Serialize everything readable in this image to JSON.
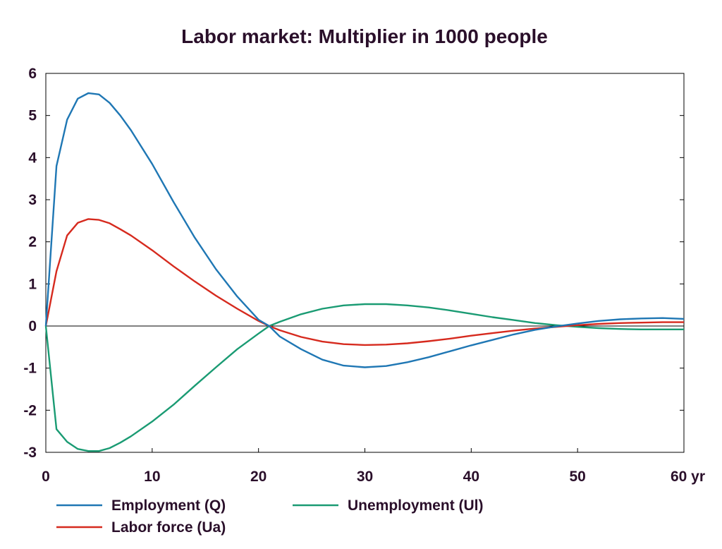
{
  "chart_data": {
    "type": "line",
    "title": "Labor market: Multiplier in 1000 people",
    "xlabel": "",
    "ylabel": "",
    "xlim": [
      0,
      60
    ],
    "ylim": [
      -3,
      6
    ],
    "x_ticks": [
      0,
      10,
      20,
      30,
      40,
      50,
      60
    ],
    "x_tick_labels": [
      "0",
      "10",
      "20",
      "30",
      "40",
      "50",
      "60 yr"
    ],
    "y_ticks": [
      -3,
      -2,
      -1,
      0,
      1,
      2,
      3,
      4,
      5,
      6
    ],
    "y_tick_labels": [
      "-3",
      "-2",
      "-1",
      "0",
      "1",
      "2",
      "3",
      "4",
      "5",
      "6"
    ],
    "grid": false,
    "legend_position": "bottom",
    "series": [
      {
        "name": "Employment (Q)",
        "color": "#1f77b4",
        "x": [
          0,
          1,
          2,
          3,
          4,
          5,
          6,
          7,
          8,
          10,
          12,
          14,
          16,
          18,
          20,
          21,
          22,
          24,
          26,
          28,
          30,
          32,
          34,
          36,
          38,
          40,
          42,
          44,
          46,
          48,
          50,
          52,
          54,
          56,
          58,
          60
        ],
        "y": [
          0,
          3.8,
          4.9,
          5.4,
          5.53,
          5.5,
          5.3,
          5.0,
          4.65,
          3.85,
          2.95,
          2.1,
          1.35,
          0.7,
          0.15,
          0,
          -0.25,
          -0.55,
          -0.8,
          -0.94,
          -0.98,
          -0.95,
          -0.86,
          -0.74,
          -0.6,
          -0.46,
          -0.33,
          -0.2,
          -0.09,
          -0.01,
          0.06,
          0.12,
          0.16,
          0.18,
          0.19,
          0.17
        ]
      },
      {
        "name": "Unemployment (Ul)",
        "color": "#1a9b73",
        "x": [
          0,
          1,
          2,
          3,
          4,
          5,
          6,
          7,
          8,
          10,
          12,
          14,
          16,
          18,
          20,
          21,
          22,
          24,
          26,
          28,
          30,
          32,
          34,
          36,
          38,
          40,
          42,
          44,
          46,
          48,
          50,
          52,
          54,
          56,
          58,
          60
        ],
        "y": [
          0,
          -2.45,
          -2.75,
          -2.92,
          -2.97,
          -2.97,
          -2.9,
          -2.77,
          -2.62,
          -2.27,
          -1.87,
          -1.42,
          -0.98,
          -0.55,
          -0.18,
          0,
          0.1,
          0.28,
          0.41,
          0.49,
          0.52,
          0.52,
          0.49,
          0.44,
          0.37,
          0.29,
          0.21,
          0.14,
          0.07,
          0.02,
          -0.02,
          -0.05,
          -0.07,
          -0.08,
          -0.08,
          -0.08
        ]
      },
      {
        "name": "Labor force (Ua)",
        "color": "#d62a1e",
        "x": [
          0,
          1,
          2,
          3,
          4,
          5,
          6,
          7,
          8,
          10,
          12,
          14,
          16,
          18,
          20,
          21,
          22,
          24,
          26,
          28,
          30,
          32,
          34,
          36,
          38,
          40,
          42,
          44,
          46,
          48,
          50,
          52,
          54,
          56,
          58,
          60
        ],
        "y": [
          0,
          1.3,
          2.15,
          2.45,
          2.54,
          2.52,
          2.44,
          2.3,
          2.15,
          1.8,
          1.42,
          1.06,
          0.72,
          0.41,
          0.12,
          0,
          -0.1,
          -0.26,
          -0.37,
          -0.43,
          -0.45,
          -0.44,
          -0.41,
          -0.36,
          -0.3,
          -0.23,
          -0.17,
          -0.11,
          -0.06,
          -0.02,
          0.02,
          0.05,
          0.07,
          0.08,
          0.09,
          0.09
        ]
      }
    ]
  }
}
